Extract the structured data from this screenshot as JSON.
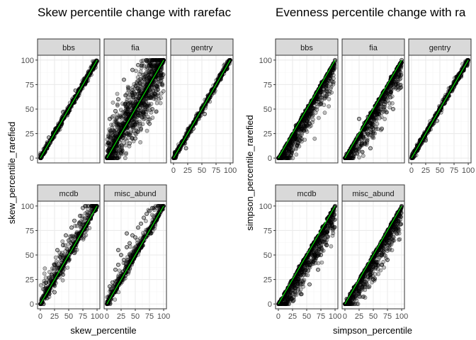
{
  "colors": {
    "panel_bg": "#ffffff",
    "panel_border": "#333333",
    "grid_major": "#ebebeb",
    "grid_minor": "#f5f5f5",
    "strip_bg": "#d9d9d9",
    "point": "#000000",
    "line": "#00ff00",
    "tick_text": "#4d4d4d"
  },
  "chart_data": [
    {
      "type": "scatter",
      "title": "Skew percentile change with rarefac",
      "xlabel": "skew_percentile",
      "ylabel": "skew_percentile_rarefied",
      "xlim": [
        0,
        100
      ],
      "ylim": [
        0,
        100
      ],
      "x_ticks": [
        "0",
        "25",
        "50",
        "75",
        "100"
      ],
      "y_ticks": [
        "0",
        "25",
        "50",
        "75",
        "100"
      ],
      "grid": true,
      "reference_line": "y = x",
      "layout": "facet_wrap 2 rows x 3 columns",
      "facets": [
        {
          "name": "bbs",
          "spread": "tight",
          "points": [
            [
              0,
              0
            ],
            [
              5,
              4
            ],
            [
              12,
              10
            ],
            [
              20,
              19
            ],
            [
              28,
              26
            ],
            [
              35,
              33
            ],
            [
              42,
              41
            ],
            [
              50,
              48
            ],
            [
              58,
              57
            ],
            [
              65,
              63
            ],
            [
              72,
              71
            ],
            [
              80,
              78
            ],
            [
              88,
              87
            ],
            [
              95,
              94
            ],
            [
              100,
              99
            ],
            [
              15,
              21
            ],
            [
              40,
              47
            ],
            [
              62,
              69
            ]
          ]
        },
        {
          "name": "fia",
          "spread": "very wide",
          "points": [
            [
              0,
              0
            ],
            [
              5,
              40
            ],
            [
              10,
              2
            ],
            [
              20,
              60
            ],
            [
              25,
              5
            ],
            [
              30,
              80
            ],
            [
              40,
              15
            ],
            [
              45,
              90
            ],
            [
              50,
              20
            ],
            [
              55,
              95
            ],
            [
              60,
              30
            ],
            [
              70,
              100
            ],
            [
              75,
              35
            ],
            [
              80,
              50
            ],
            [
              85,
              65
            ],
            [
              90,
              70
            ],
            [
              95,
              85
            ],
            [
              100,
              100
            ],
            [
              3,
              22
            ],
            [
              15,
              48
            ],
            [
              35,
              52
            ]
          ]
        },
        {
          "name": "gentry",
          "spread": "tight",
          "points": [
            [
              0,
              0
            ],
            [
              10,
              8
            ],
            [
              20,
              15
            ],
            [
              30,
              27
            ],
            [
              40,
              38
            ],
            [
              50,
              48
            ],
            [
              60,
              58
            ],
            [
              70,
              70
            ],
            [
              80,
              80
            ],
            [
              90,
              90
            ],
            [
              100,
              100
            ],
            [
              22,
              10
            ],
            [
              35,
              30
            ],
            [
              55,
              45
            ]
          ]
        },
        {
          "name": "mcdb",
          "spread": "wide",
          "points": [
            [
              0,
              0
            ],
            [
              5,
              8
            ],
            [
              10,
              18
            ],
            [
              15,
              22
            ],
            [
              20,
              30
            ],
            [
              25,
              40
            ],
            [
              30,
              55
            ],
            [
              35,
              48
            ],
            [
              40,
              60
            ],
            [
              45,
              70
            ],
            [
              50,
              65
            ],
            [
              55,
              78
            ],
            [
              60,
              85
            ],
            [
              65,
              72
            ],
            [
              70,
              90
            ],
            [
              75,
              98
            ],
            [
              80,
              100
            ],
            [
              90,
              100
            ],
            [
              100,
              100
            ],
            [
              40,
              30
            ],
            [
              50,
              45
            ],
            [
              60,
              52
            ],
            [
              25,
              12
            ]
          ]
        },
        {
          "name": "misc_abund",
          "spread": "moderate",
          "points": [
            [
              0,
              0
            ],
            [
              5,
              18
            ],
            [
              10,
              22
            ],
            [
              15,
              35
            ],
            [
              20,
              40
            ],
            [
              25,
              50
            ],
            [
              30,
              45
            ],
            [
              35,
              58
            ],
            [
              40,
              62
            ],
            [
              45,
              70
            ],
            [
              50,
              68
            ],
            [
              55,
              78
            ],
            [
              60,
              82
            ],
            [
              65,
              88
            ],
            [
              70,
              92
            ],
            [
              75,
              95
            ],
            [
              80,
              98
            ],
            [
              90,
              100
            ],
            [
              100,
              100
            ],
            [
              20,
              55
            ],
            [
              35,
              72
            ]
          ]
        }
      ]
    },
    {
      "type": "scatter",
      "title": "Evenness percentile change with ra",
      "xlabel": "simpson_percentile",
      "ylabel": "simpson_percentile_rarefied",
      "xlim": [
        0,
        100
      ],
      "ylim": [
        0,
        100
      ],
      "x_ticks": [
        "0",
        "25",
        "50",
        "75",
        "100"
      ],
      "y_ticks": [
        "0",
        "25",
        "50",
        "75",
        "100"
      ],
      "grid": true,
      "reference_line": "y = x",
      "layout": "facet_wrap 2 rows x 3 columns",
      "facets": [
        {
          "name": "bbs",
          "spread": "wide below",
          "points": [
            [
              0,
              0
            ],
            [
              10,
              5
            ],
            [
              20,
              10
            ],
            [
              30,
              20
            ],
            [
              40,
              30
            ],
            [
              50,
              38
            ],
            [
              60,
              50
            ],
            [
              70,
              60
            ],
            [
              80,
              70
            ],
            [
              90,
              82
            ],
            [
              100,
              100
            ],
            [
              15,
              2
            ],
            [
              35,
              15
            ],
            [
              55,
              35
            ],
            [
              75,
              55
            ],
            [
              95,
              90
            ],
            [
              25,
              8
            ],
            [
              45,
              28
            ]
          ]
        },
        {
          "name": "fia",
          "spread": "wide below",
          "points": [
            [
              0,
              0
            ],
            [
              10,
              3
            ],
            [
              20,
              8
            ],
            [
              30,
              15
            ],
            [
              40,
              25
            ],
            [
              50,
              30
            ],
            [
              60,
              45
            ],
            [
              70,
              55
            ],
            [
              80,
              62
            ],
            [
              90,
              75
            ],
            [
              100,
              100
            ],
            [
              25,
              40
            ],
            [
              45,
              10
            ],
            [
              65,
              30
            ],
            [
              85,
              50
            ],
            [
              95,
              85
            ]
          ]
        },
        {
          "name": "gentry",
          "spread": "tight",
          "points": [
            [
              0,
              0
            ],
            [
              10,
              12
            ],
            [
              20,
              22
            ],
            [
              30,
              30
            ],
            [
              40,
              40
            ],
            [
              50,
              52
            ],
            [
              60,
              62
            ],
            [
              70,
              72
            ],
            [
              80,
              82
            ],
            [
              90,
              92
            ],
            [
              100,
              100
            ],
            [
              25,
              18
            ],
            [
              45,
              38
            ]
          ]
        },
        {
          "name": "mcdb",
          "spread": "wide below",
          "points": [
            [
              0,
              0
            ],
            [
              5,
              5
            ],
            [
              10,
              10
            ],
            [
              15,
              8
            ],
            [
              20,
              20
            ],
            [
              25,
              18
            ],
            [
              30,
              30
            ],
            [
              35,
              25
            ],
            [
              40,
              38
            ],
            [
              45,
              30
            ],
            [
              50,
              50
            ],
            [
              55,
              40
            ],
            [
              60,
              60
            ],
            [
              65,
              45
            ],
            [
              70,
              65
            ],
            [
              75,
              50
            ],
            [
              80,
              75
            ],
            [
              85,
              60
            ],
            [
              90,
              85
            ],
            [
              100,
              100
            ],
            [
              40,
              10
            ],
            [
              55,
              20
            ],
            [
              70,
              35
            ]
          ]
        },
        {
          "name": "misc_abund",
          "spread": "wide below",
          "points": [
            [
              0,
              0
            ],
            [
              10,
              10
            ],
            [
              20,
              15
            ],
            [
              30,
              25
            ],
            [
              35,
              20
            ],
            [
              40,
              35
            ],
            [
              45,
              30
            ],
            [
              50,
              45
            ],
            [
              55,
              40
            ],
            [
              60,
              55
            ],
            [
              65,
              50
            ],
            [
              70,
              62
            ],
            [
              75,
              60
            ],
            [
              80,
              72
            ],
            [
              85,
              78
            ],
            [
              90,
              85
            ],
            [
              95,
              92
            ],
            [
              100,
              100
            ],
            [
              50,
              25
            ],
            [
              65,
              40
            ],
            [
              75,
              45
            ]
          ]
        }
      ]
    }
  ]
}
